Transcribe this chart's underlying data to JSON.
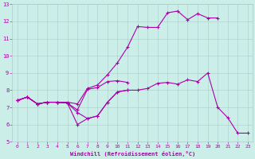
{
  "xlabel": "Windchill (Refroidissement éolien,°C)",
  "bg_color": "#cceee8",
  "line_color": "#aa00aa",
  "grid_color": "#aacccc",
  "xlim": [
    -0.5,
    23.5
  ],
  "ylim": [
    5,
    13
  ],
  "xticks": [
    0,
    1,
    2,
    3,
    4,
    5,
    6,
    7,
    8,
    9,
    10,
    11,
    12,
    13,
    14,
    15,
    16,
    17,
    18,
    19,
    20,
    21,
    22,
    23
  ],
  "yticks": [
    5,
    6,
    7,
    8,
    9,
    10,
    11,
    12,
    13
  ],
  "series1": [
    [
      0,
      7.4
    ],
    [
      1,
      7.6
    ],
    [
      2,
      7.2
    ],
    [
      3,
      7.3
    ],
    [
      4,
      7.3
    ],
    [
      5,
      7.3
    ],
    [
      6,
      7.2
    ],
    [
      7,
      8.1
    ],
    [
      8,
      8.3
    ],
    [
      9,
      8.9
    ],
    [
      10,
      9.6
    ],
    [
      11,
      10.5
    ],
    [
      12,
      11.7
    ],
    [
      13,
      11.65
    ],
    [
      14,
      11.65
    ],
    [
      15,
      12.5
    ],
    [
      16,
      12.6
    ],
    [
      17,
      12.1
    ],
    [
      18,
      12.45
    ],
    [
      19,
      12.2
    ],
    [
      20,
      12.2
    ]
  ],
  "series2": [
    [
      0,
      7.4
    ],
    [
      1,
      7.6
    ],
    [
      2,
      7.2
    ],
    [
      3,
      7.3
    ],
    [
      4,
      7.3
    ],
    [
      5,
      7.25
    ],
    [
      6,
      6.85
    ],
    [
      7,
      8.05
    ],
    [
      8,
      8.15
    ],
    [
      9,
      8.5
    ],
    [
      10,
      8.55
    ],
    [
      11,
      8.45
    ]
  ],
  "series3": [
    [
      0,
      7.4
    ],
    [
      1,
      7.6
    ],
    [
      2,
      7.2
    ],
    [
      3,
      7.3
    ],
    [
      4,
      7.3
    ],
    [
      5,
      7.25
    ],
    [
      6,
      6.0
    ],
    [
      7,
      6.35
    ],
    [
      8,
      6.5
    ],
    [
      9,
      7.3
    ],
    [
      10,
      7.9
    ],
    [
      11,
      8.0
    ]
  ],
  "series4": [
    [
      0,
      7.4
    ],
    [
      1,
      7.6
    ],
    [
      2,
      7.2
    ],
    [
      3,
      7.3
    ],
    [
      4,
      7.3
    ],
    [
      5,
      7.25
    ],
    [
      6,
      6.7
    ],
    [
      7,
      6.35
    ],
    [
      8,
      6.5
    ],
    [
      9,
      7.3
    ],
    [
      10,
      7.9
    ],
    [
      11,
      8.0
    ],
    [
      12,
      8.0
    ],
    [
      13,
      8.1
    ],
    [
      14,
      8.4
    ],
    [
      15,
      8.45
    ],
    [
      16,
      8.35
    ],
    [
      17,
      8.6
    ],
    [
      18,
      8.5
    ],
    [
      19,
      9.0
    ],
    [
      20,
      7.0
    ],
    [
      21,
      6.4
    ],
    [
      22,
      5.5
    ],
    [
      23,
      5.5
    ]
  ]
}
